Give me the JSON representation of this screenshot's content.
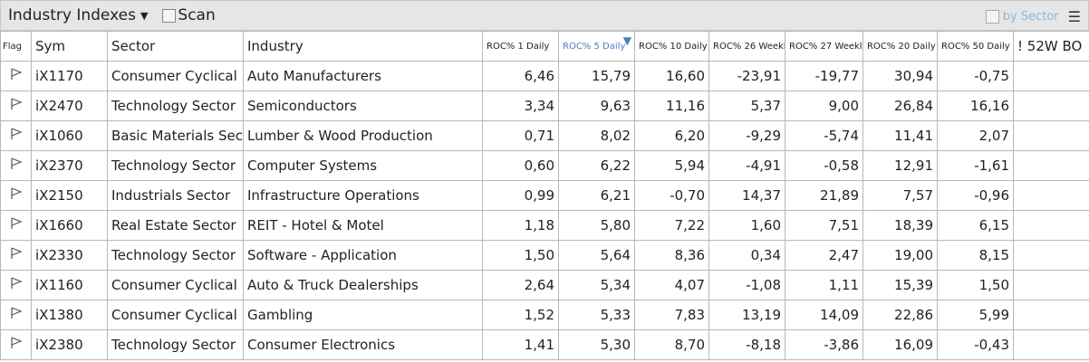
{
  "toolbar": {
    "title": "Industry Indexes",
    "scan_label": "Scan",
    "by_sector_label": "by Sector",
    "caret_icon": "caret-down",
    "menu_icon": "hamburger"
  },
  "colors": {
    "sorted_header": "#4a7fc0",
    "by_sector": "#8ab8de"
  },
  "columns": [
    "Flag",
    "Sym",
    "Sector",
    "Industry",
    "ROC% 1 Daily",
    "ROC% 5 Daily",
    "ROC% 10 Daily",
    "ROC% 26 Weekly",
    "ROC% 27 Weekly",
    "ROC% 20 Daily",
    "ROC% 50 Daily",
    "! 52W BO"
  ],
  "sort": {
    "column": "ROC% 5 Daily",
    "direction": "descending"
  },
  "rows": [
    {
      "sym": "iX1170",
      "sector": "Consumer Cyclical",
      "industry": "Auto Manufacturers",
      "v": [
        "6,46",
        "15,79",
        "16,60",
        "-23,91",
        "-19,77",
        "30,94",
        "-0,75",
        ""
      ]
    },
    {
      "sym": "iX2470",
      "sector": "Technology Sector",
      "industry": "Semiconductors",
      "v": [
        "3,34",
        "9,63",
        "11,16",
        "5,37",
        "9,00",
        "26,84",
        "16,16",
        ""
      ]
    },
    {
      "sym": "iX1060",
      "sector": "Basic Materials Sect",
      "industry": "Lumber & Wood Production",
      "v": [
        "0,71",
        "8,02",
        "6,20",
        "-9,29",
        "-5,74",
        "11,41",
        "2,07",
        ""
      ]
    },
    {
      "sym": "iX2370",
      "sector": "Technology Sector",
      "industry": "Computer Systems",
      "v": [
        "0,60",
        "6,22",
        "5,94",
        "-4,91",
        "-0,58",
        "12,91",
        "-1,61",
        ""
      ]
    },
    {
      "sym": "iX2150",
      "sector": "Industrials Sector",
      "industry": "Infrastructure Operations",
      "v": [
        "0,99",
        "6,21",
        "-0,70",
        "14,37",
        "21,89",
        "7,57",
        "-0,96",
        ""
      ]
    },
    {
      "sym": "iX1660",
      "sector": "Real Estate Sector",
      "industry": "REIT - Hotel & Motel",
      "v": [
        "1,18",
        "5,80",
        "7,22",
        "1,60",
        "7,51",
        "18,39",
        "6,15",
        ""
      ]
    },
    {
      "sym": "iX2330",
      "sector": "Technology Sector",
      "industry": "Software - Application",
      "v": [
        "1,50",
        "5,64",
        "8,36",
        "0,34",
        "2,47",
        "19,00",
        "8,15",
        ""
      ]
    },
    {
      "sym": "iX1160",
      "sector": "Consumer Cyclical",
      "industry": "Auto & Truck Dealerships",
      "v": [
        "2,64",
        "5,34",
        "4,07",
        "-1,08",
        "1,11",
        "15,39",
        "1,50",
        ""
      ]
    },
    {
      "sym": "iX1380",
      "sector": "Consumer Cyclical",
      "industry": "Gambling",
      "v": [
        "1,52",
        "5,33",
        "7,83",
        "13,19",
        "14,09",
        "22,86",
        "5,99",
        ""
      ]
    },
    {
      "sym": "iX2380",
      "sector": "Technology Sector",
      "industry": "Consumer Electronics",
      "v": [
        "1,41",
        "5,30",
        "8,70",
        "-8,18",
        "-3,86",
        "16,09",
        "-0,43",
        ""
      ]
    }
  ]
}
